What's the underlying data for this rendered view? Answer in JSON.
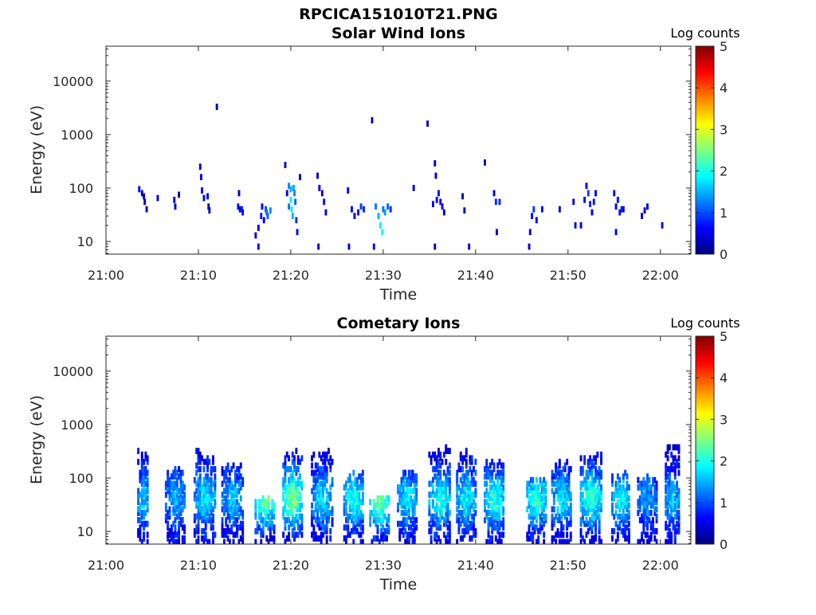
{
  "figure": {
    "title": "RPCICA151010T21.PNG"
  },
  "chart_data": [
    {
      "type": "heatmap",
      "title": "Solar Wind Ions",
      "xlabel": "Time",
      "ylabel": "Energy (eV)",
      "x_ticks": [
        "21:00",
        "21:10",
        "21:20",
        "21:30",
        "21:40",
        "21:50",
        "22:00"
      ],
      "x_range_minutes": [
        0,
        63.3
      ],
      "y_ticks": [
        {
          "value": 10,
          "label": "10"
        },
        {
          "value": 100,
          "label": "100"
        },
        {
          "value": 1000,
          "label": "1000"
        },
        {
          "value": 10000,
          "label": "10000"
        }
      ],
      "y_range": [
        5.8,
        45000
      ],
      "y_scale": "log",
      "colorbar": {
        "label": "Log counts",
        "range": [
          0,
          5
        ],
        "ticks": [
          "0",
          "1",
          "2",
          "3",
          "4",
          "5"
        ],
        "colormap": "jet"
      },
      "cells": [
        [
          3.6,
          95,
          0.5
        ],
        [
          3.9,
          80,
          0.4
        ],
        [
          4.1,
          70,
          0.4
        ],
        [
          4.2,
          55,
          0.3
        ],
        [
          4.4,
          40,
          0.3
        ],
        [
          5.6,
          65,
          0.3
        ],
        [
          7.4,
          60,
          0.4
        ],
        [
          7.5,
          45,
          0.3
        ],
        [
          7.9,
          75,
          0.3
        ],
        [
          10.2,
          250,
          0.4
        ],
        [
          10.3,
          160,
          0.5
        ],
        [
          10.4,
          90,
          0.6
        ],
        [
          10.6,
          65,
          0.5
        ],
        [
          11.0,
          70,
          0.4
        ],
        [
          11.1,
          45,
          0.3
        ],
        [
          11.2,
          38,
          0.3
        ],
        [
          12.0,
          3300,
          0.3
        ],
        [
          14.4,
          80,
          0.3
        ],
        [
          14.3,
          45,
          0.7
        ],
        [
          14.5,
          40,
          0.5
        ],
        [
          14.7,
          40,
          0.8
        ],
        [
          14.8,
          35,
          0.5
        ],
        [
          16.2,
          13,
          0.4
        ],
        [
          16.5,
          8,
          0.6
        ],
        [
          16.5,
          18,
          0.5
        ],
        [
          16.8,
          30,
          0.7
        ],
        [
          16.9,
          45,
          0.6
        ],
        [
          17.1,
          25,
          0.5
        ],
        [
          17.3,
          40,
          1.0
        ],
        [
          17.4,
          35,
          1.2
        ],
        [
          17.5,
          30,
          1.1
        ],
        [
          17.8,
          38,
          1.3
        ],
        [
          19.4,
          270,
          0.4
        ],
        [
          19.6,
          80,
          0.6
        ],
        [
          19.8,
          110,
          1.3
        ],
        [
          19.8,
          45,
          1.2
        ],
        [
          20.0,
          95,
          1.5
        ],
        [
          20.0,
          60,
          1.8
        ],
        [
          20.1,
          40,
          1.8
        ],
        [
          20.2,
          30,
          1.5
        ],
        [
          20.3,
          100,
          1.4
        ],
        [
          20.4,
          80,
          1.3
        ],
        [
          20.5,
          55,
          1.1
        ],
        [
          20.6,
          25,
          0.8
        ],
        [
          20.7,
          15,
          0.6
        ],
        [
          21.0,
          160,
          0.4
        ],
        [
          22.9,
          170,
          0.3
        ],
        [
          23.1,
          100,
          0.6
        ],
        [
          23.4,
          80,
          0.4
        ],
        [
          23.6,
          55,
          0.6
        ],
        [
          23.8,
          35,
          0.4
        ],
        [
          23.0,
          8,
          0.5
        ],
        [
          26.2,
          90,
          0.4
        ],
        [
          26.3,
          8,
          0.4
        ],
        [
          26.6,
          40,
          0.5
        ],
        [
          26.9,
          30,
          0.6
        ],
        [
          27.3,
          35,
          0.7
        ],
        [
          27.6,
          45,
          0.9
        ],
        [
          27.9,
          40,
          0.8
        ],
        [
          28.8,
          1850,
          0.3
        ],
        [
          29.2,
          45,
          1.2
        ],
        [
          29.5,
          30,
          1.5
        ],
        [
          29.7,
          20,
          1.8
        ],
        [
          29.9,
          15,
          1.9
        ],
        [
          30.0,
          40,
          1.2
        ],
        [
          30.2,
          35,
          1.4
        ],
        [
          30.5,
          45,
          1.1
        ],
        [
          30.8,
          40,
          0.8
        ],
        [
          29.0,
          8,
          0.5
        ],
        [
          33.3,
          100,
          0.3
        ],
        [
          34.8,
          1600,
          0.3
        ],
        [
          35.4,
          50,
          0.6
        ],
        [
          35.6,
          290,
          0.4
        ],
        [
          35.7,
          170,
          0.4
        ],
        [
          35.8,
          60,
          0.6
        ],
        [
          36.0,
          80,
          0.6
        ],
        [
          36.2,
          55,
          0.6
        ],
        [
          36.4,
          45,
          0.5
        ],
        [
          36.6,
          35,
          0.4
        ],
        [
          35.6,
          8,
          0.4
        ],
        [
          38.6,
          70,
          0.3
        ],
        [
          38.8,
          38,
          0.3
        ],
        [
          39.3,
          8,
          0.4
        ],
        [
          41.0,
          300,
          0.3
        ],
        [
          42.0,
          80,
          0.4
        ],
        [
          42.2,
          55,
          0.8
        ],
        [
          42.6,
          55,
          0.8
        ],
        [
          42.3,
          15,
          0.4
        ],
        [
          45.9,
          15,
          0.5
        ],
        [
          45.8,
          8,
          0.5
        ],
        [
          46.1,
          30,
          0.7
        ],
        [
          46.3,
          40,
          0.9
        ],
        [
          46.6,
          25,
          0.6
        ],
        [
          47.2,
          40,
          0.5
        ],
        [
          49.1,
          40,
          0.4
        ],
        [
          50.6,
          55,
          0.4
        ],
        [
          50.8,
          20,
          0.4
        ],
        [
          51.4,
          20,
          0.5
        ],
        [
          51.8,
          60,
          0.6
        ],
        [
          52.0,
          110,
          0.6
        ],
        [
          52.2,
          80,
          0.9
        ],
        [
          52.4,
          50,
          0.8
        ],
        [
          52.6,
          35,
          0.6
        ],
        [
          52.8,
          55,
          0.7
        ],
        [
          53.0,
          80,
          0.5
        ],
        [
          55.0,
          80,
          0.6
        ],
        [
          55.2,
          45,
          0.6
        ],
        [
          55.4,
          60,
          0.7
        ],
        [
          55.6,
          35,
          0.7
        ],
        [
          55.8,
          40,
          0.8
        ],
        [
          55.2,
          15,
          0.5
        ],
        [
          56.0,
          40,
          0.5
        ],
        [
          58.0,
          30,
          0.4
        ],
        [
          58.3,
          38,
          0.4
        ],
        [
          58.6,
          45,
          0.4
        ],
        [
          60.2,
          20,
          0.5
        ]
      ]
    },
    {
      "type": "heatmap",
      "title": "Cometary Ions",
      "xlabel": "Time",
      "ylabel": "Energy (eV)",
      "x_ticks": [
        "21:00",
        "21:10",
        "21:20",
        "21:30",
        "21:40",
        "21:50",
        "22:00"
      ],
      "x_range_minutes": [
        0,
        63.3
      ],
      "y_ticks": [
        {
          "value": 10,
          "label": "10"
        },
        {
          "value": 100,
          "label": "100"
        },
        {
          "value": 1000,
          "label": "1000"
        },
        {
          "value": 10000,
          "label": "10000"
        }
      ],
      "y_range": [
        5.8,
        45000
      ],
      "y_scale": "log",
      "colorbar": {
        "label": "Log counts",
        "range": [
          0,
          5
        ],
        "ticks": [
          "0",
          "1",
          "2",
          "3",
          "4",
          "5"
        ],
        "colormap": "jet"
      },
      "bursts": [
        [
          3.5,
          4.6,
          340,
          1.7,
          1.0
        ],
        [
          6.5,
          8.6,
          180,
          1.5,
          1.2
        ],
        [
          9.6,
          11.9,
          330,
          1.8,
          1.4
        ],
        [
          12.6,
          14.8,
          190,
          1.6,
          1.4
        ],
        [
          16.2,
          18.3,
          45,
          2.5,
          1.9
        ],
        [
          19.2,
          21.3,
          330,
          2.6,
          1.5
        ],
        [
          22.3,
          24.5,
          320,
          1.8,
          1.5
        ],
        [
          25.8,
          27.9,
          130,
          2.0,
          1.7
        ],
        [
          28.6,
          30.7,
          45,
          2.6,
          1.8
        ],
        [
          31.6,
          33.7,
          130,
          1.8,
          1.3
        ],
        [
          35.0,
          37.3,
          380,
          2.0,
          1.5
        ],
        [
          38.0,
          40.0,
          320,
          1.9,
          1.4
        ],
        [
          41.0,
          43.1,
          200,
          2.1,
          1.4
        ],
        [
          45.6,
          47.6,
          100,
          2.1,
          1.7
        ],
        [
          48.3,
          50.3,
          210,
          1.8,
          1.5
        ],
        [
          51.4,
          53.6,
          300,
          2.2,
          1.6
        ],
        [
          54.8,
          56.6,
          120,
          1.9,
          1.5
        ],
        [
          57.6,
          59.6,
          110,
          1.4,
          1.3
        ],
        [
          60.6,
          62.1,
          450,
          1.6,
          1.3
        ]
      ]
    }
  ]
}
